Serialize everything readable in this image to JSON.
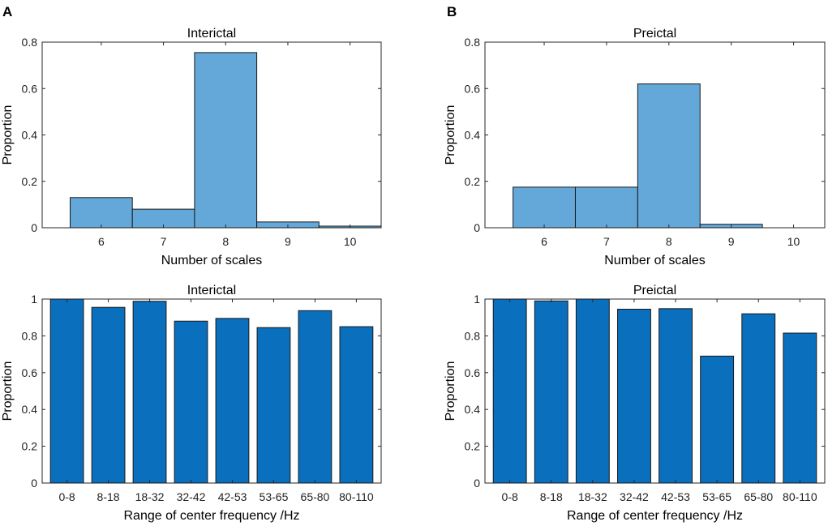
{
  "chart_data": [
    {
      "panel": "A",
      "type": "histogram",
      "title": "Interictal",
      "xlabel": "Number of scales",
      "ylabel": "Proportion",
      "categories": [
        "6",
        "7",
        "8",
        "9",
        "10"
      ],
      "values": [
        0.13,
        0.08,
        0.755,
        0.025,
        0.007
      ],
      "ylim": [
        0,
        0.8
      ],
      "yticks": [
        "0",
        "0.2",
        "0.4",
        "0.6",
        "0.8"
      ],
      "color": "#64a8d9"
    },
    {
      "panel": "B",
      "type": "histogram",
      "title": "Preictal",
      "xlabel": "Number of scales",
      "ylabel": "Proportion",
      "categories": [
        "6",
        "7",
        "8",
        "9",
        "10"
      ],
      "values": [
        0.175,
        0.175,
        0.62,
        0.015,
        0
      ],
      "ylim": [
        0,
        0.8
      ],
      "yticks": [
        "0",
        "0.2",
        "0.4",
        "0.6",
        "0.8"
      ],
      "color": "#64a8d9"
    },
    {
      "panel": "",
      "type": "bar",
      "title": "Interictal",
      "xlabel": "Range of center frequency /Hz",
      "ylabel": "Proportion",
      "categories": [
        "0-8",
        "8-18",
        "18-32",
        "32-42",
        "42-53",
        "53-65",
        "65-80",
        "80-110"
      ],
      "values": [
        1.0,
        0.955,
        0.988,
        0.88,
        0.895,
        0.845,
        0.937,
        0.85
      ],
      "ylim": [
        0,
        1
      ],
      "yticks": [
        "0",
        "0.2",
        "0.4",
        "0.6",
        "0.8",
        "1"
      ],
      "color": "#0a6fbd"
    },
    {
      "panel": "",
      "type": "bar",
      "title": "Preictal",
      "xlabel": "Range of center frequency /Hz",
      "ylabel": "Proportion",
      "categories": [
        "0-8",
        "8-18",
        "18-32",
        "32-42",
        "42-53",
        "53-65",
        "65-80",
        "80-110"
      ],
      "values": [
        1.0,
        0.99,
        1.0,
        0.945,
        0.948,
        0.69,
        0.92,
        0.815
      ],
      "ylim": [
        0,
        1
      ],
      "yticks": [
        "0",
        "0.2",
        "0.4",
        "0.6",
        "0.8",
        "1"
      ],
      "color": "#0a6fbd"
    }
  ]
}
